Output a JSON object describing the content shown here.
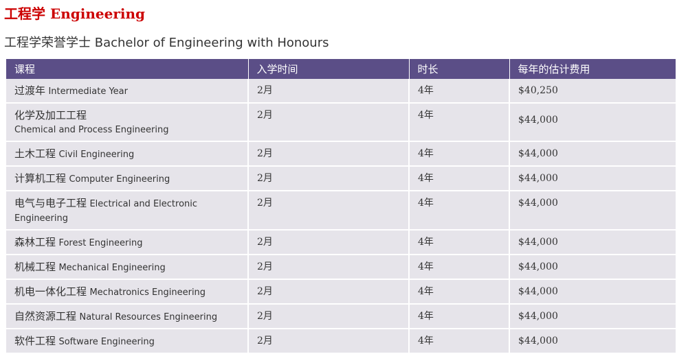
{
  "page": {
    "title": "工程学 Engineering",
    "section_title": "工程学荣誉学士 Bachelor of Engineering with Honours"
  },
  "table": {
    "headers": [
      "课程",
      "入学时间",
      "时长",
      "每年的估计费用"
    ],
    "rows": [
      {
        "cn": "过渡年",
        "en": "Intermediate Year",
        "intake": "2月",
        "duration": "4年",
        "fee": "$40,250"
      },
      {
        "cn": "化学及加工工程",
        "en": "Chemical and Process Engineering",
        "intake": "2月",
        "duration": "4年",
        "fee": "$44,000"
      },
      {
        "cn": "土木工程",
        "en": "Civil Engineering",
        "intake": "2月",
        "duration": "4年",
        "fee": "$44,000"
      },
      {
        "cn": "计算机工程",
        "en": "Computer Engineering",
        "intake": "2月",
        "duration": "4年",
        "fee": "$44,000"
      },
      {
        "cn": "电气与电子工程",
        "en": "Electrical and Electronic Engineering",
        "intake": "2月",
        "duration": "4年",
        "fee": "$44,000"
      },
      {
        "cn": "森林工程",
        "en": "Forest Engineering",
        "intake": "2月",
        "duration": "4年",
        "fee": "$44,000"
      },
      {
        "cn": "机械工程",
        "en": "Mechanical Engineering",
        "intake": "2月",
        "duration": "4年",
        "fee": "$44,000"
      },
      {
        "cn": "机电一体化工程",
        "en": "Mechatronics Engineering",
        "intake": "2月",
        "duration": "4年",
        "fee": "$44,000"
      },
      {
        "cn": "自然资源工程",
        "en": "Natural Resources Engineering",
        "intake": "2月",
        "duration": "4年",
        "fee": "$44,000"
      },
      {
        "cn": "软件工程",
        "en": "Software Engineering",
        "intake": "2月",
        "duration": "4年",
        "fee": "$44,000"
      }
    ]
  }
}
